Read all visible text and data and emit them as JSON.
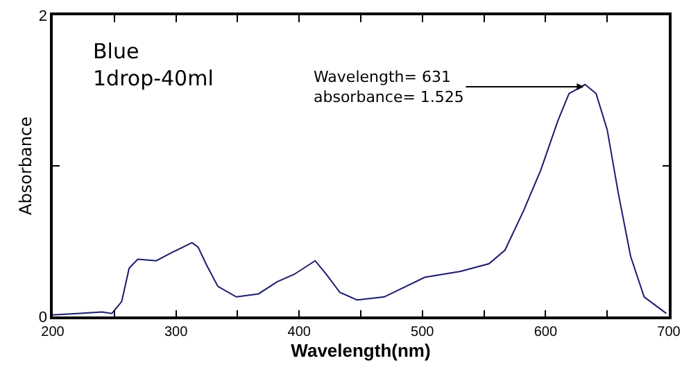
{
  "chart_data": {
    "type": "line",
    "xlabel": "Wavelength(nm)",
    "ylabel": "Absorbance",
    "annotations": [
      "Blue\n1drop-40ml",
      {
        "text": "Wavelength= 631\nabsorbance= 1.525",
        "x": 631,
        "y": 1.525
      }
    ],
    "x": [
      200,
      220,
      240,
      248,
      256,
      262,
      269,
      284,
      298,
      313,
      318,
      325,
      334,
      349,
      367,
      382,
      396,
      413,
      422,
      433,
      447,
      469,
      502,
      531,
      554,
      567,
      582,
      596,
      610,
      619,
      632,
      641,
      650,
      659,
      669,
      680,
      698
    ],
    "series": [
      {
        "color": "#1a1a6e",
        "values": [
          0.01,
          0.02,
          0.03,
          0.02,
          0.1,
          0.32,
          0.38,
          0.37,
          0.43,
          0.49,
          0.46,
          0.34,
          0.2,
          0.13,
          0.15,
          0.23,
          0.28,
          0.37,
          0.28,
          0.16,
          0.11,
          0.13,
          0.26,
          0.3,
          0.35,
          0.44,
          0.7,
          0.97,
          1.3,
          1.48,
          1.54,
          1.48,
          1.24,
          0.82,
          0.4,
          0.13,
          0.02
        ]
      }
    ],
    "xlim": [
      200,
      700
    ],
    "xticks": [
      200,
      {
        "value": 250,
        "label": null
      },
      300,
      {
        "value": 350,
        "label": null
      },
      400,
      {
        "value": 450,
        "label": null
      },
      500,
      {
        "value": 550,
        "label": null
      },
      600,
      {
        "value": 650,
        "label": null
      },
      700
    ],
    "ylim": [
      0,
      2
    ],
    "yticks": [
      0,
      {
        "value": 1,
        "label": null
      },
      2
    ],
    "marker": "none",
    "line_style": "solid"
  }
}
